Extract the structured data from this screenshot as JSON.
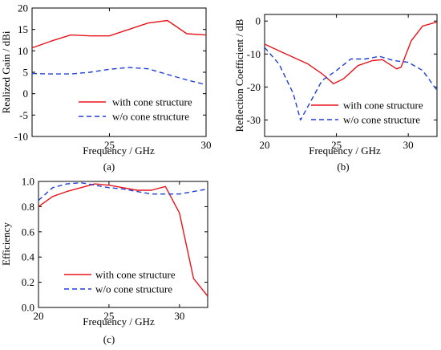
{
  "chart_data": [
    {
      "type": "line",
      "panel_label": "(a)",
      "xlabel": "Frequency / GHz",
      "ylabel": "Realized Gain / dBi",
      "xlim": [
        21,
        30
      ],
      "ylim": [
        -10,
        20
      ],
      "xticks": [
        25,
        30
      ],
      "xticklabels": [
        "25",
        "30"
      ],
      "yticks": [
        -10,
        -5,
        0,
        5,
        10,
        15,
        20
      ],
      "yticklabels": [
        "-10",
        "-5",
        "0",
        "5",
        "10",
        "15",
        "20"
      ],
      "legend_position": "lower-right",
      "series": [
        {
          "name": "with cone structure",
          "color": "#e8141b",
          "dash": "solid",
          "points": [
            [
              21,
              10.7
            ],
            [
              22,
              12.3
            ],
            [
              23,
              13.7
            ],
            [
              24,
              13.5
            ],
            [
              25,
              13.5
            ],
            [
              26,
              15.0
            ],
            [
              27,
              16.5
            ],
            [
              28,
              17.1
            ],
            [
              29,
              14.0
            ],
            [
              30,
              13.7
            ]
          ]
        },
        {
          "name": "w/o cone structure",
          "color": "#1f3fd6",
          "dash": "dashed",
          "points": [
            [
              21,
              4.7
            ],
            [
              22,
              4.6
            ],
            [
              23,
              4.6
            ],
            [
              24,
              5.0
            ],
            [
              25,
              5.7
            ],
            [
              26,
              6.1
            ],
            [
              27,
              5.8
            ],
            [
              28,
              4.5
            ],
            [
              29,
              3.2
            ],
            [
              30,
              2.1
            ]
          ]
        }
      ]
    },
    {
      "type": "line",
      "panel_label": "(b)",
      "xlabel": "Frequency / GHz",
      "ylabel": "Reflection Coefficient / dB",
      "xlim": [
        20,
        32
      ],
      "ylim": [
        -35,
        2
      ],
      "xticks": [
        20,
        25,
        30
      ],
      "xticklabels": [
        "20",
        "25",
        "30"
      ],
      "yticks": [
        -30,
        -20,
        -10,
        0
      ],
      "yticklabels": [
        "-30",
        "-20",
        "-10",
        "0"
      ],
      "legend_position": "lower-right",
      "series": [
        {
          "name": "with cone structure",
          "color": "#e8141b",
          "dash": "solid",
          "points": [
            [
              20,
              -7
            ],
            [
              21,
              -9
            ],
            [
              22,
              -11
            ],
            [
              23,
              -13
            ],
            [
              24,
              -16
            ],
            [
              24.8,
              -19
            ],
            [
              25.5,
              -17.5
            ],
            [
              26.5,
              -13.5
            ],
            [
              27.5,
              -12
            ],
            [
              28.2,
              -11.7
            ],
            [
              29.2,
              -14.5
            ],
            [
              29.5,
              -14
            ],
            [
              30.2,
              -6
            ],
            [
              31,
              -1.5
            ],
            [
              32,
              -0.3
            ]
          ]
        },
        {
          "name": "w/o cone structure",
          "color": "#1f3fd6",
          "dash": "dashed",
          "points": [
            [
              20,
              -8
            ],
            [
              21,
              -13
            ],
            [
              22,
              -22
            ],
            [
              22.5,
              -30
            ],
            [
              23,
              -26
            ],
            [
              24,
              -18
            ],
            [
              25,
              -15
            ],
            [
              26,
              -11.5
            ],
            [
              27,
              -11.5
            ],
            [
              28,
              -10.7
            ],
            [
              29,
              -12
            ],
            [
              30,
              -12.5
            ],
            [
              31,
              -15
            ],
            [
              32,
              -21
            ]
          ]
        }
      ]
    },
    {
      "type": "line",
      "panel_label": "(c)",
      "xlabel": "Frequency / GHz",
      "ylabel": "Efficiency",
      "xlim": [
        20,
        32
      ],
      "ylim": [
        0,
        1.0
      ],
      "xticks": [
        20,
        25,
        30
      ],
      "xticklabels": [
        "20",
        "25",
        "30"
      ],
      "yticks": [
        0,
        0.2,
        0.4,
        0.6,
        0.8,
        1.0
      ],
      "yticklabels": [
        "0.0",
        "0.2",
        "0.4",
        "0.6",
        "0.8",
        "1.0"
      ],
      "legend_position": "lower-right",
      "series": [
        {
          "name": "with cone structure",
          "color": "#e8141b",
          "dash": "solid",
          "points": [
            [
              20,
              0.8
            ],
            [
              21,
              0.88
            ],
            [
              22,
              0.92
            ],
            [
              23,
              0.95
            ],
            [
              24,
              0.98
            ],
            [
              25,
              0.97
            ],
            [
              26,
              0.95
            ],
            [
              27,
              0.93
            ],
            [
              28,
              0.93
            ],
            [
              29,
              0.96
            ],
            [
              30,
              0.75
            ],
            [
              31,
              0.23
            ],
            [
              32,
              0.09
            ]
          ]
        },
        {
          "name": "w/o cone structure",
          "color": "#1f3fd6",
          "dash": "dashed",
          "points": [
            [
              20,
              0.85
            ],
            [
              21,
              0.95
            ],
            [
              22,
              0.98
            ],
            [
              23,
              0.99
            ],
            [
              24,
              0.97
            ],
            [
              25,
              0.95
            ],
            [
              26,
              0.94
            ],
            [
              27,
              0.92
            ],
            [
              28,
              0.9
            ],
            [
              29,
              0.9
            ],
            [
              30,
              0.9
            ],
            [
              31,
              0.92
            ],
            [
              32,
              0.94
            ]
          ]
        }
      ]
    }
  ]
}
